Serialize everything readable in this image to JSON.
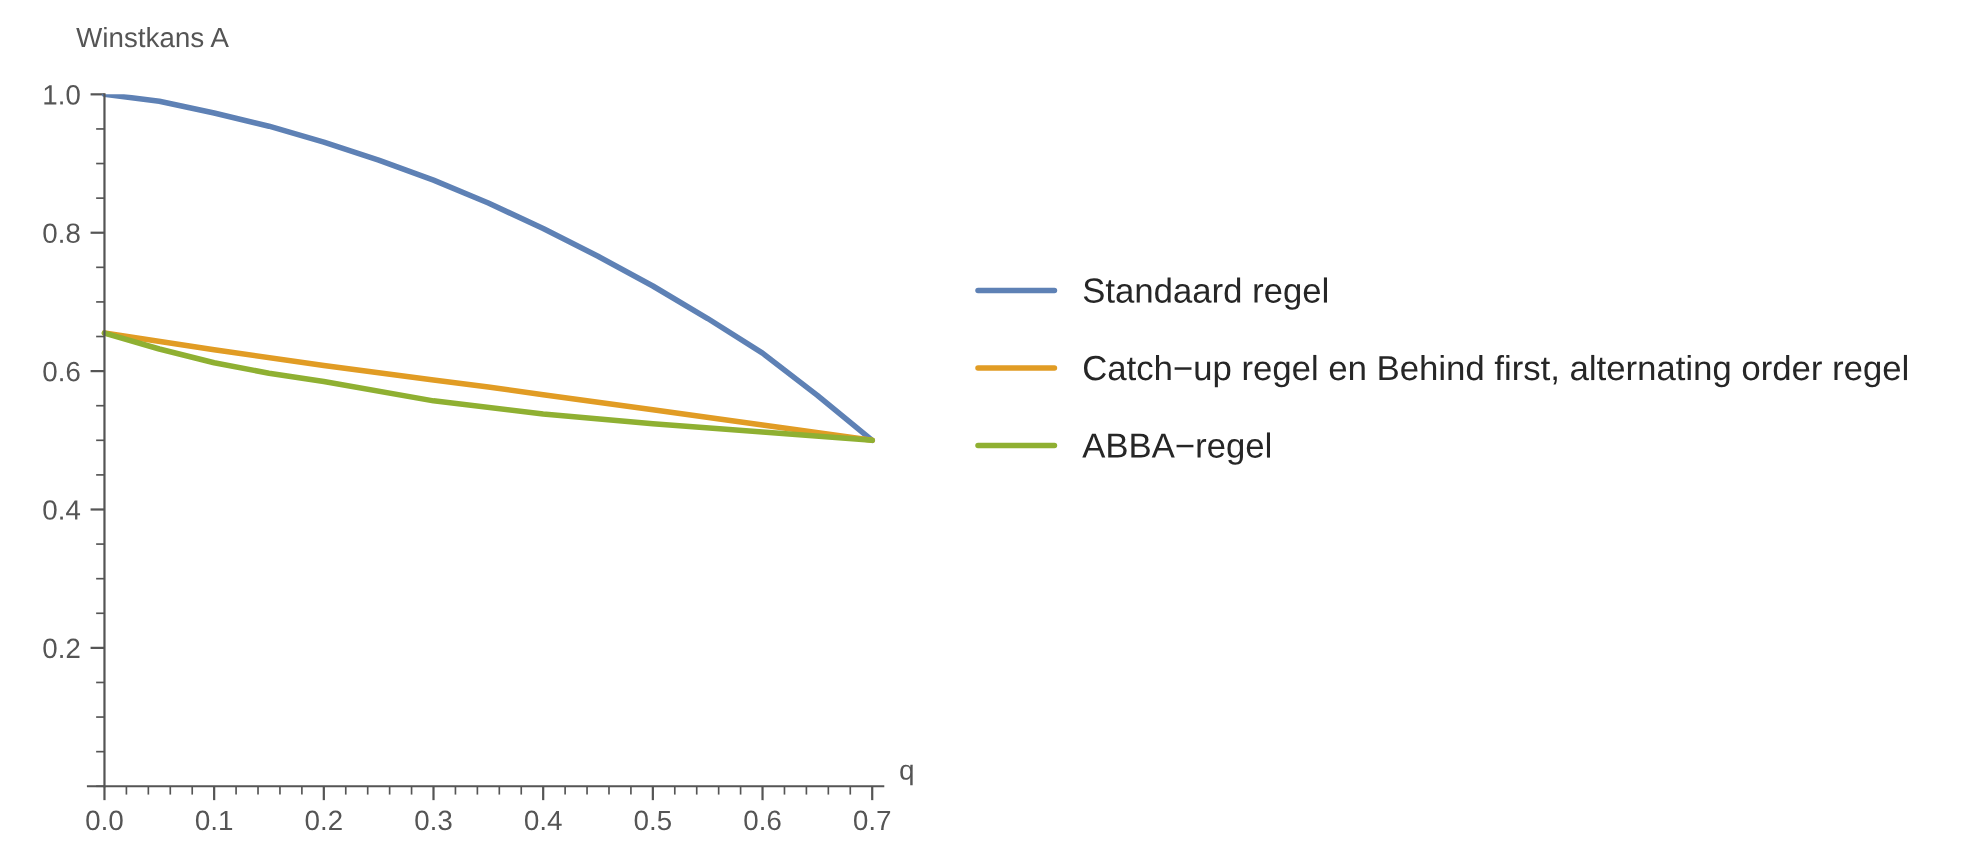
{
  "chart_data": {
    "type": "line",
    "ylabel": "Winstkans A",
    "xlabel": "q",
    "xlim": [
      -0.015,
      0.71
    ],
    "xticks": [
      {
        "value": 0,
        "label": "0.0"
      },
      0.1,
      0.2,
      0.3,
      0.4,
      0.5,
      0.6,
      0.7
    ],
    "ylim": [
      0,
      1.0
    ],
    "yticks": [
      0.2,
      0.4,
      0.6,
      0.8,
      {
        "value": 1.0,
        "label": "1.0"
      }
    ],
    "grid": false,
    "legend": "right",
    "marker": "none",
    "line_style": "solid",
    "series": [
      {
        "name": "Standaard regel",
        "color": "#5e81b5",
        "x": [
          0,
          0.05,
          0.1,
          0.15,
          0.2,
          0.25,
          0.3,
          0.35,
          0.4,
          0.45,
          0.5,
          0.55,
          0.6,
          0.65,
          0.7
        ],
        "values": [
          1.0,
          0.99,
          0.973,
          0.954,
          0.931,
          0.905,
          0.876,
          0.843,
          0.806,
          0.766,
          0.723,
          0.676,
          0.626,
          0.565,
          0.5
        ]
      },
      {
        "name": "Catch−up regel en Behind first, alternating order regel",
        "color": "#e19c24",
        "x": [
          0,
          0.1,
          0.2,
          0.3,
          0.35,
          0.4,
          0.5,
          0.6,
          0.7
        ],
        "values": [
          0.655,
          0.631,
          0.608,
          0.587,
          0.577,
          0.566,
          0.544,
          0.522,
          0.5
        ]
      },
      {
        "name": "ABBA−regel",
        "color": "#8fb032",
        "x": [
          0,
          0.05,
          0.1,
          0.15,
          0.2,
          0.3,
          0.4,
          0.5,
          0.6,
          0.7
        ],
        "values": [
          0.655,
          0.632,
          0.612,
          0.597,
          0.585,
          0.557,
          0.538,
          0.524,
          0.512,
          0.5
        ]
      }
    ]
  }
}
